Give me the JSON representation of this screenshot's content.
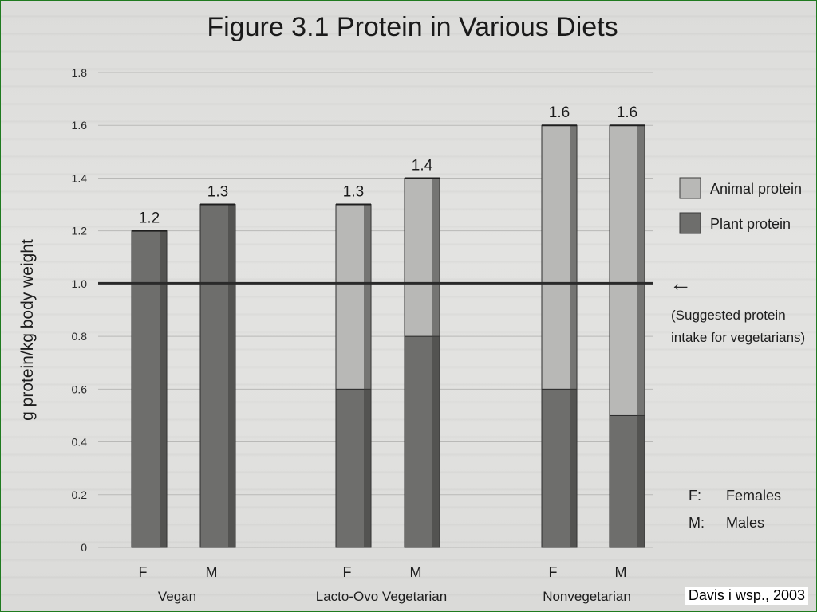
{
  "credit": "Davis i wsp., 2003",
  "chart_data": {
    "type": "bar",
    "stacked": true,
    "title": "Figure 3.1   Protein in Various Diets",
    "ylabel": "g protein/kg body weight",
    "xlabel": "",
    "ylim": [
      0,
      1.8
    ],
    "yticks": [
      0,
      0.2,
      0.4,
      0.6,
      0.8,
      1.0,
      1.2,
      1.4,
      1.6,
      1.8
    ],
    "ytick_labels": [
      "0",
      "0.2",
      "0.4",
      "0.6",
      "0.8",
      "1.0",
      "1.2",
      "1.4",
      "1.6",
      "1.8"
    ],
    "grid": true,
    "groups": [
      {
        "label": "Vegan",
        "bars": [
          0,
          1
        ]
      },
      {
        "label": "Lacto-Ovo Vegetarian",
        "bars": [
          2,
          3
        ]
      },
      {
        "label": "Nonvegetarian",
        "bars": [
          4,
          5
        ]
      }
    ],
    "bars": [
      {
        "sex": "F",
        "plant": 1.2,
        "animal": 0.0,
        "total_label": "1.2"
      },
      {
        "sex": "M",
        "plant": 1.3,
        "animal": 0.0,
        "total_label": "1.3"
      },
      {
        "sex": "F",
        "plant": 0.6,
        "animal": 0.7,
        "total_label": "1.3"
      },
      {
        "sex": "M",
        "plant": 0.8,
        "animal": 0.6,
        "total_label": "1.4"
      },
      {
        "sex": "F",
        "plant": 0.6,
        "animal": 1.0,
        "total_label": "1.6"
      },
      {
        "sex": "M",
        "plant": 0.5,
        "animal": 1.1,
        "total_label": "1.6"
      }
    ],
    "series": [
      {
        "name": "Animal protein",
        "key": "animal",
        "color": "#b8b8b6"
      },
      {
        "name": "Plant protein",
        "key": "plant",
        "color": "#6e6e6c"
      }
    ],
    "legend_position": "right",
    "reference_line": {
      "value": 1.0,
      "arrow": "←",
      "label_lines": [
        "(Suggested protein",
        "intake for vegetarians)"
      ]
    },
    "sex_key": [
      {
        "code": "F:",
        "meaning": "Females"
      },
      {
        "code": "M:",
        "meaning": "Males"
      }
    ]
  }
}
